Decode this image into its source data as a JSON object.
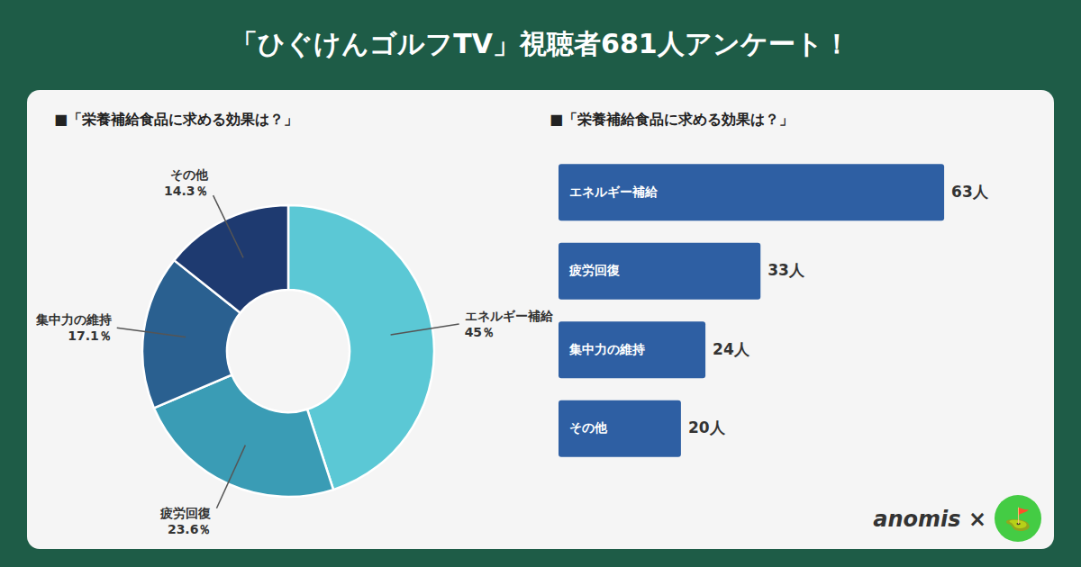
{
  "chart_data": [
    {
      "type": "pie",
      "title": "「ひぐけんゴルフTV」視聴者681人アンケート！",
      "subtitle": "■「栄養補給食品に求める効果は？」",
      "categories": [
        "エネルギー補給",
        "疲労回復",
        "集中力の維持",
        "その他"
      ],
      "values": [
        45,
        23.6,
        17.1,
        14.3
      ],
      "value_labels": [
        "45％",
        "23.6％",
        "17.1％",
        "14.3％"
      ],
      "colors": [
        "#5bc8d5",
        "#3a9cb5",
        "#2a6090",
        "#1e3a70"
      ],
      "data_labels": true
    },
    {
      "type": "bar",
      "subtitle": "■「栄養補給食品に求める効果は？」",
      "orientation": "horizontal",
      "categories": [
        "エネルギー補給",
        "疲労回復",
        "集中力の維持",
        "その他"
      ],
      "values": [
        63,
        33,
        24,
        20
      ],
      "value_labels": [
        "63人",
        "33人",
        "24人",
        "20人"
      ],
      "color": "#2e5fa3",
      "xlim": [
        0,
        78
      ],
      "tick_labels": false,
      "data_labels": true,
      "annotations": [
        "anomis ×",
        "⛳"
      ]
    }
  ]
}
